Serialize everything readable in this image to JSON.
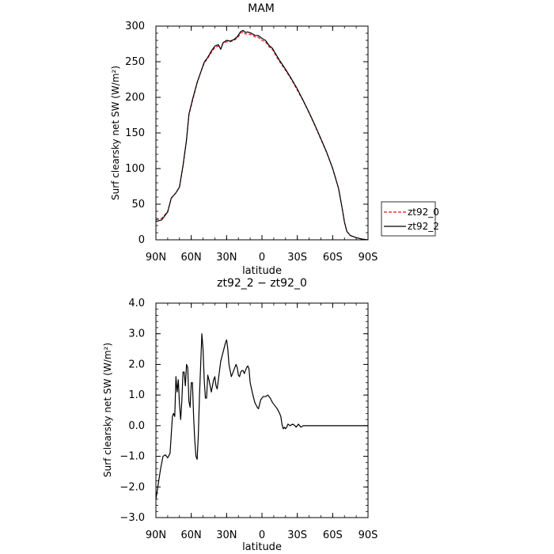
{
  "chart_data": [
    {
      "type": "line",
      "title": "MAM",
      "xlabel": "latitude",
      "ylabel": "Surf clearsky net SW (W/m²)",
      "xlim": [
        90,
        -90
      ],
      "ylim": [
        0,
        300
      ],
      "x_ticks": [
        {
          "value": 90,
          "label": "90N"
        },
        {
          "value": 60,
          "label": "60N"
        },
        {
          "value": 30,
          "label": "30N"
        },
        {
          "value": 0,
          "label": "0"
        },
        {
          "value": -30,
          "label": "30S"
        },
        {
          "value": -60,
          "label": "60S"
        },
        {
          "value": -90,
          "label": "90S"
        }
      ],
      "y_ticks": [
        {
          "value": 0,
          "label": "0"
        },
        {
          "value": 50,
          "label": "50"
        },
        {
          "value": 100,
          "label": "100"
        },
        {
          "value": 150,
          "label": "150"
        },
        {
          "value": 200,
          "label": "200"
        },
        {
          "value": 250,
          "label": "250"
        },
        {
          "value": 300,
          "label": "300"
        }
      ],
      "legend": {
        "placement": "right"
      },
      "series": [
        {
          "name": "zt92_0",
          "color": "#e8141c",
          "dash": "dashed",
          "points": [
            [
              90,
              28
            ],
            [
              85,
              30
            ],
            [
              80,
              40
            ],
            [
              77,
              58
            ],
            [
              73,
              66
            ],
            [
              70,
              74
            ],
            [
              67,
              103
            ],
            [
              64,
              140
            ],
            [
              62,
              175
            ],
            [
              59,
              195
            ],
            [
              55,
              220
            ],
            [
              52,
              235
            ],
            [
              49,
              248
            ],
            [
              46,
              255
            ],
            [
              43,
              263
            ],
            [
              40,
              270
            ],
            [
              37,
              272
            ],
            [
              35,
              268
            ],
            [
              33,
              276
            ],
            [
              30,
              278
            ],
            [
              27,
              278
            ],
            [
              24,
              280
            ],
            [
              21,
              283
            ],
            [
              18,
              290
            ],
            [
              16,
              292
            ],
            [
              14,
              289
            ],
            [
              12,
              289
            ],
            [
              9,
              288
            ],
            [
              6,
              285
            ],
            [
              3,
              284
            ],
            [
              0,
              280
            ],
            [
              -3,
              278
            ],
            [
              -6,
              271
            ],
            [
              -9,
              267
            ],
            [
              -12,
              258
            ],
            [
              -15,
              250
            ],
            [
              -20,
              238
            ],
            [
              -25,
              225
            ],
            [
              -30,
              210
            ],
            [
              -35,
              195
            ],
            [
              -40,
              178
            ],
            [
              -45,
              160
            ],
            [
              -50,
              141
            ],
            [
              -55,
              122
            ],
            [
              -60,
              100
            ],
            [
              -65,
              72
            ],
            [
              -68,
              45
            ],
            [
              -70,
              25
            ],
            [
              -72,
              12
            ],
            [
              -75,
              6
            ],
            [
              -80,
              3
            ],
            [
              -85,
              1
            ],
            [
              -90,
              0
            ]
          ]
        },
        {
          "name": "zt92_2",
          "color": "#000000",
          "dash": "solid",
          "points": [
            [
              90,
              25.6
            ],
            [
              85,
              28
            ],
            [
              80,
              39.2
            ],
            [
              77,
              58.5
            ],
            [
              73,
              66
            ],
            [
              70,
              74
            ],
            [
              67,
              104.4
            ],
            [
              64,
              140.7
            ],
            [
              62,
              176.2
            ],
            [
              59,
              196.6
            ],
            [
              55,
              221
            ],
            [
              52,
              235.2
            ],
            [
              49,
              249.4
            ],
            [
              46,
              256.2
            ],
            [
              43,
              265
            ],
            [
              40,
              272
            ],
            [
              37,
              274
            ],
            [
              35,
              267.5
            ],
            [
              33,
              276.8
            ],
            [
              30,
              280
            ],
            [
              27,
              279
            ],
            [
              24,
              281
            ],
            [
              21,
              285
            ],
            [
              18,
              292.5
            ],
            [
              16,
              294
            ],
            [
              14,
              291.2
            ],
            [
              12,
              291.8
            ],
            [
              9,
              290
            ],
            [
              6,
              287
            ],
            [
              3,
              286.7
            ],
            [
              0,
              282.8
            ],
            [
              -3,
              280
            ],
            [
              -6,
              273
            ],
            [
              -9,
              268.6
            ],
            [
              -12,
              260
            ],
            [
              -15,
              251.8
            ],
            [
              -20,
              239.5
            ],
            [
              -25,
              226.1
            ],
            [
              -30,
              211.8
            ],
            [
              -35,
              195.6
            ],
            [
              -40,
              178.8
            ],
            [
              -45,
              160.9
            ],
            [
              -50,
              142
            ],
            [
              -55,
              122.6
            ],
            [
              -60,
              100.3
            ],
            [
              -65,
              72.2
            ],
            [
              -68,
              44.8
            ],
            [
              -70,
              25
            ],
            [
              -72,
              12
            ],
            [
              -75,
              6
            ],
            [
              -80,
              3
            ],
            [
              -85,
              1
            ],
            [
              -90,
              0
            ]
          ]
        }
      ]
    },
    {
      "type": "line",
      "title": "zt92_2 − zt92_0",
      "xlabel": "latitude",
      "ylabel": "Surf clearsky net SW (W/m²)",
      "xlim": [
        90,
        -90
      ],
      "ylim": [
        -3.0,
        4.0
      ],
      "x_ticks": [
        {
          "value": 90,
          "label": "90N"
        },
        {
          "value": 60,
          "label": "60N"
        },
        {
          "value": 30,
          "label": "30N"
        },
        {
          "value": 0,
          "label": "0"
        },
        {
          "value": -30,
          "label": "30S"
        },
        {
          "value": -60,
          "label": "60S"
        },
        {
          "value": -90,
          "label": "90S"
        }
      ],
      "y_ticks": [
        {
          "value": -3.0,
          "label": "−3.0"
        },
        {
          "value": -2.0,
          "label": "−2.0"
        },
        {
          "value": -1.0,
          "label": "−1.0"
        },
        {
          "value": 0.0,
          "label": "0.0"
        },
        {
          "value": 1.0,
          "label": "1.0"
        },
        {
          "value": 2.0,
          "label": "2.0"
        },
        {
          "value": 3.0,
          "label": "3.0"
        },
        {
          "value": 4.0,
          "label": "4.0"
        }
      ],
      "series": [
        {
          "color": "#000000",
          "dash": "solid",
          "points": [
            [
              90,
              -2.4
            ],
            [
              88,
              -1.9
            ],
            [
              86,
              -1.4
            ],
            [
              84,
              -1.0
            ],
            [
              82,
              -0.95
            ],
            [
              80,
              -1.05
            ],
            [
              78,
              -0.9
            ],
            [
              76,
              0.3
            ],
            [
              75,
              0.4
            ],
            [
              74,
              0.3
            ],
            [
              73,
              1.6
            ],
            [
              72,
              1.1
            ],
            [
              71,
              1.5
            ],
            [
              70,
              0.7
            ],
            [
              69,
              0.2
            ],
            [
              68,
              0.8
            ],
            [
              67,
              1.75
            ],
            [
              66,
              1.75
            ],
            [
              65,
              1.3
            ],
            [
              64,
              2.0
            ],
            [
              63,
              1.9
            ],
            [
              62,
              0.8
            ],
            [
              61,
              0.6
            ],
            [
              60,
              1.4
            ],
            [
              59,
              1.4
            ],
            [
              58,
              0.3
            ],
            [
              57,
              -0.5
            ],
            [
              56,
              -1.0
            ],
            [
              55,
              -1.1
            ],
            [
              54,
              -0.3
            ],
            [
              53,
              1.0
            ],
            [
              52,
              2.0
            ],
            [
              51,
              3.0
            ],
            [
              50,
              2.5
            ],
            [
              49,
              1.5
            ],
            [
              48,
              0.9
            ],
            [
              47,
              0.9
            ],
            [
              46,
              1.65
            ],
            [
              45,
              1.5
            ],
            [
              44,
              1.3
            ],
            [
              43,
              1.1
            ],
            [
              42,
              1.3
            ],
            [
              41,
              1.5
            ],
            [
              40,
              1.6
            ],
            [
              39,
              1.3
            ],
            [
              38,
              1.2
            ],
            [
              37,
              1.5
            ],
            [
              35,
              2.1
            ],
            [
              33,
              2.4
            ],
            [
              31,
              2.7
            ],
            [
              30,
              2.8
            ],
            [
              29,
              2.5
            ],
            [
              28,
              2.0
            ],
            [
              27,
              1.8
            ],
            [
              26,
              1.6
            ],
            [
              25,
              1.7
            ],
            [
              24,
              1.8
            ],
            [
              22,
              2.0
            ],
            [
              21,
              1.9
            ],
            [
              20,
              1.65
            ],
            [
              19,
              1.6
            ],
            [
              18,
              1.75
            ],
            [
              17,
              1.8
            ],
            [
              16,
              1.8
            ],
            [
              15,
              1.7
            ],
            [
              14,
              1.8
            ],
            [
              13,
              1.9
            ],
            [
              12,
              1.95
            ],
            [
              11,
              1.85
            ],
            [
              10,
              1.4
            ],
            [
              8,
              1.05
            ],
            [
              6,
              0.75
            ],
            [
              4,
              0.6
            ],
            [
              3,
              0.55
            ],
            [
              1,
              0.85
            ],
            [
              -1,
              0.95
            ],
            [
              -3,
              0.95
            ],
            [
              -5,
              1.0
            ],
            [
              -7,
              0.9
            ],
            [
              -9,
              0.75
            ],
            [
              -11,
              0.65
            ],
            [
              -13,
              0.55
            ],
            [
              -15,
              0.4
            ],
            [
              -16,
              0.3
            ],
            [
              -17,
              0.05
            ],
            [
              -18,
              -0.1
            ],
            [
              -19,
              -0.05
            ],
            [
              -20,
              -0.1
            ],
            [
              -21,
              -0.05
            ],
            [
              -22,
              0.05
            ],
            [
              -24,
              0.0
            ],
            [
              -26,
              0.05
            ],
            [
              -28,
              0.0
            ],
            [
              -29,
              -0.05
            ],
            [
              -30,
              0.0
            ],
            [
              -31,
              0.05
            ],
            [
              -33,
              -0.05
            ],
            [
              -35,
              0.0
            ],
            [
              -37,
              0.0
            ],
            [
              -39,
              0.0
            ],
            [
              -41,
              0.0
            ],
            [
              -43,
              0.0
            ],
            [
              -90,
              0.0
            ]
          ]
        }
      ]
    }
  ]
}
